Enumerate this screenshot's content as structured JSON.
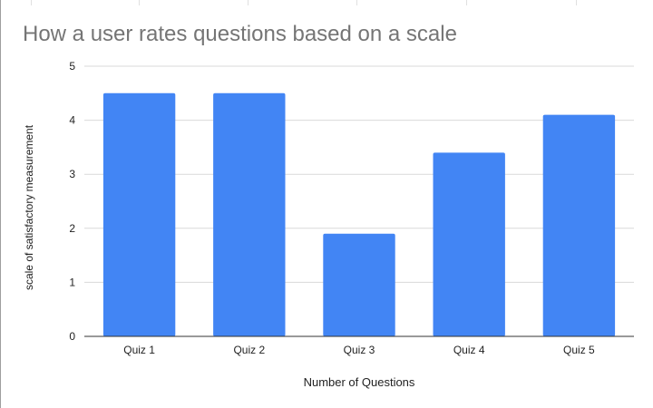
{
  "chart_data": {
    "type": "bar",
    "title": "How a user rates questions based on a scale",
    "xlabel": "Number of Questions",
    "ylabel": "scale of satisfactory measurement",
    "categories": [
      "Quiz 1",
      "Quiz 2",
      "Quiz 3",
      "Quiz 4",
      "Quiz 5"
    ],
    "values": [
      4.5,
      4.5,
      1.9,
      3.4,
      4.1
    ],
    "ylim": [
      0,
      5
    ],
    "yticks": [
      "0",
      "1",
      "2",
      "3",
      "4",
      "5"
    ],
    "grid": true,
    "bar_color": "#4285f4",
    "grid_color": "#d9d9d9",
    "axis_color": "#333333",
    "title_color": "#757575",
    "text_color": "#222222"
  }
}
